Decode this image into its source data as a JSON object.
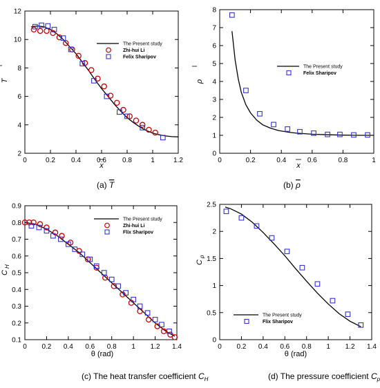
{
  "chart_data": [
    {
      "type": "line",
      "caption": {
        "prefix": "(a)",
        "symbol": "T"
      },
      "xlabel": "x",
      "ylabel": "T",
      "xlim": [
        0,
        1.2
      ],
      "ylim": [
        2,
        12
      ],
      "xticks": [
        "0",
        "0.2",
        "0.4",
        "0.6",
        "0.8",
        "1",
        "1.2"
      ],
      "yticks": [
        "2",
        "4",
        "6",
        "8",
        "10",
        "12"
      ],
      "legend": [
        "The Present study",
        "Zhi-hui Li",
        "Felix Sharipov"
      ],
      "legend_position": "top-right",
      "series": [
        {
          "name": "The Present study",
          "style": "line",
          "x": [
            0.05,
            0.1,
            0.15,
            0.2,
            0.25,
            0.3,
            0.35,
            0.4,
            0.45,
            0.5,
            0.55,
            0.6,
            0.65,
            0.7,
            0.75,
            0.8,
            0.85,
            0.9,
            0.95,
            1.0,
            1.05,
            1.1,
            1.15,
            1.2
          ],
          "y": [
            10.9,
            10.95,
            10.9,
            10.7,
            10.4,
            10.0,
            9.5,
            9.0,
            8.4,
            7.8,
            7.15,
            6.55,
            6.0,
            5.45,
            4.95,
            4.5,
            4.15,
            3.85,
            3.6,
            3.42,
            3.3,
            3.22,
            3.17,
            3.15
          ]
        },
        {
          "name": "Zhi-hui Li",
          "style": "circle",
          "color": "#cc0000",
          "x": [
            0.07,
            0.12,
            0.17,
            0.22,
            0.27,
            0.32,
            0.37,
            0.42,
            0.47,
            0.52,
            0.57,
            0.62,
            0.67,
            0.72,
            0.77,
            0.82,
            0.87,
            0.92,
            0.97,
            1.02
          ],
          "y": [
            10.7,
            10.6,
            10.6,
            10.45,
            10.15,
            9.75,
            9.3,
            8.85,
            8.35,
            7.85,
            7.25,
            6.7,
            6.05,
            5.55,
            5.05,
            4.6,
            4.3,
            4.0,
            3.65,
            3.45
          ]
        },
        {
          "name": "Felix Sharipov",
          "style": "square",
          "color": "#3333cc",
          "x": [
            0.08,
            0.13,
            0.18,
            0.23,
            0.3,
            0.36,
            0.45,
            0.54,
            0.64,
            0.74,
            0.8,
            0.92,
            1.08
          ],
          "y": [
            10.9,
            11.0,
            10.95,
            10.7,
            10.1,
            9.3,
            8.3,
            7.1,
            6.0,
            4.9,
            4.6,
            3.8,
            3.1
          ]
        }
      ]
    },
    {
      "type": "line",
      "caption": {
        "prefix": "(b)",
        "symbol": "ρ"
      },
      "xlabel": "x",
      "ylabel": "ρ",
      "xlim": [
        0,
        1
      ],
      "ylim": [
        0,
        8
      ],
      "xticks": [
        "0",
        "0.2",
        "0.4",
        "0.6",
        "0.8",
        "1"
      ],
      "yticks": [
        "0",
        "1",
        "2",
        "3",
        "4",
        "5",
        "6",
        "7",
        "8"
      ],
      "legend": [
        "The Present study",
        "Felix Sharipov"
      ],
      "legend_position": "center-right",
      "series": [
        {
          "name": "The Present study",
          "style": "line",
          "x": [
            0.08,
            0.1,
            0.12,
            0.14,
            0.17,
            0.2,
            0.24,
            0.28,
            0.33,
            0.38,
            0.45,
            0.5,
            0.6,
            0.7,
            0.8,
            0.9,
            1.0
          ],
          "y": [
            6.8,
            5.2,
            4.15,
            3.4,
            2.7,
            2.25,
            1.85,
            1.58,
            1.4,
            1.27,
            1.17,
            1.12,
            1.06,
            1.03,
            1.01,
            1.0,
            1.0
          ]
        },
        {
          "name": "Felix Sharipov",
          "style": "square",
          "color": "#3333cc",
          "x": [
            0.08,
            0.17,
            0.26,
            0.35,
            0.44,
            0.52,
            0.61,
            0.7,
            0.78,
            0.87,
            0.96
          ],
          "y": [
            7.7,
            3.5,
            2.2,
            1.6,
            1.35,
            1.2,
            1.12,
            1.05,
            1.05,
            1.02,
            1.02
          ]
        }
      ]
    },
    {
      "type": "line",
      "caption": {
        "text": "(c) The heat transfer coefficient",
        "symbol": "C",
        "sub": "H"
      },
      "xlabel": "θ (rad)",
      "ylabel": "C",
      "xlim": [
        0,
        1.4
      ],
      "ylim": [
        0.1,
        0.9
      ],
      "xticks": [
        "0",
        "0.2",
        "0.4",
        "0.6",
        "0.8",
        "1",
        "1.2",
        "1.4"
      ],
      "yticks": [
        "0.1",
        "0.2",
        "0.3",
        "0.4",
        "0.5",
        "0.6",
        "0.7",
        "0.8",
        "0.9"
      ],
      "legend": [
        "The Present study",
        "Zhi-hui Li",
        "Flix Sharipov"
      ],
      "legend_position": "top-right",
      "series": [
        {
          "name": "The Present study",
          "style": "line",
          "x": [
            0,
            0.1,
            0.2,
            0.3,
            0.4,
            0.5,
            0.6,
            0.7,
            0.8,
            0.9,
            1.0,
            1.1,
            1.2,
            1.3,
            1.38
          ],
          "y": [
            0.8,
            0.79,
            0.76,
            0.72,
            0.67,
            0.62,
            0.56,
            0.5,
            0.44,
            0.38,
            0.32,
            0.26,
            0.2,
            0.15,
            0.12
          ]
        },
        {
          "name": "Zhi-hui Li",
          "style": "circle",
          "color": "#cc0000",
          "x": [
            0,
            0.04,
            0.08,
            0.14,
            0.2,
            0.28,
            0.34,
            0.42,
            0.5,
            0.58,
            0.66,
            0.74,
            0.82,
            0.9,
            0.98,
            1.06,
            1.14,
            1.22,
            1.28,
            1.34,
            1.38
          ],
          "y": [
            0.8,
            0.8,
            0.8,
            0.79,
            0.77,
            0.74,
            0.72,
            0.68,
            0.63,
            0.58,
            0.53,
            0.47,
            0.42,
            0.37,
            0.32,
            0.27,
            0.22,
            0.18,
            0.15,
            0.13,
            0.115
          ]
        },
        {
          "name": "Flix Sharipov",
          "style": "square",
          "color": "#3333cc",
          "x": [
            0.06,
            0.13,
            0.2,
            0.26,
            0.33,
            0.4,
            0.46,
            0.53,
            0.6,
            0.66,
            0.73,
            0.8,
            0.86,
            0.93,
            1.0,
            1.06,
            1.13,
            1.2,
            1.26,
            1.33
          ],
          "y": [
            0.78,
            0.77,
            0.75,
            0.72,
            0.7,
            0.67,
            0.64,
            0.61,
            0.58,
            0.54,
            0.5,
            0.46,
            0.42,
            0.38,
            0.34,
            0.3,
            0.26,
            0.22,
            0.19,
            0.15
          ]
        }
      ]
    },
    {
      "type": "line",
      "caption": {
        "text": "(d) The pressure coefficient",
        "symbol": "C",
        "sub": "p"
      },
      "xlabel": "θ (rad)",
      "ylabel": "C",
      "xlim": [
        0,
        1.4
      ],
      "ylim": [
        0,
        2.5
      ],
      "xticks": [
        "0",
        "0.2",
        "0.4",
        "0.6",
        "0.8",
        "1",
        "1.2",
        "1.4"
      ],
      "yticks": [
        "0",
        "0.5",
        "1",
        "1.5",
        "2",
        "2.5"
      ],
      "legend": [
        "The Present study",
        "Flix Sharipov"
      ],
      "legend_position": "bottom-left",
      "series": [
        {
          "name": "The Present study",
          "style": "line",
          "x": [
            0.05,
            0.1,
            0.2,
            0.3,
            0.4,
            0.5,
            0.6,
            0.7,
            0.8,
            0.9,
            1.0,
            1.1,
            1.2,
            1.3
          ],
          "y": [
            2.45,
            2.42,
            2.32,
            2.17,
            1.98,
            1.77,
            1.55,
            1.31,
            1.08,
            0.86,
            0.66,
            0.48,
            0.34,
            0.24
          ]
        },
        {
          "name": "Flix Sharipov",
          "style": "square",
          "color": "#3333cc",
          "x": [
            0.06,
            0.2,
            0.34,
            0.48,
            0.62,
            0.76,
            0.9,
            1.04,
            1.18,
            1.3
          ],
          "y": [
            2.37,
            2.25,
            2.1,
            1.88,
            1.63,
            1.33,
            1.03,
            0.72,
            0.47,
            0.27
          ]
        }
      ]
    }
  ]
}
